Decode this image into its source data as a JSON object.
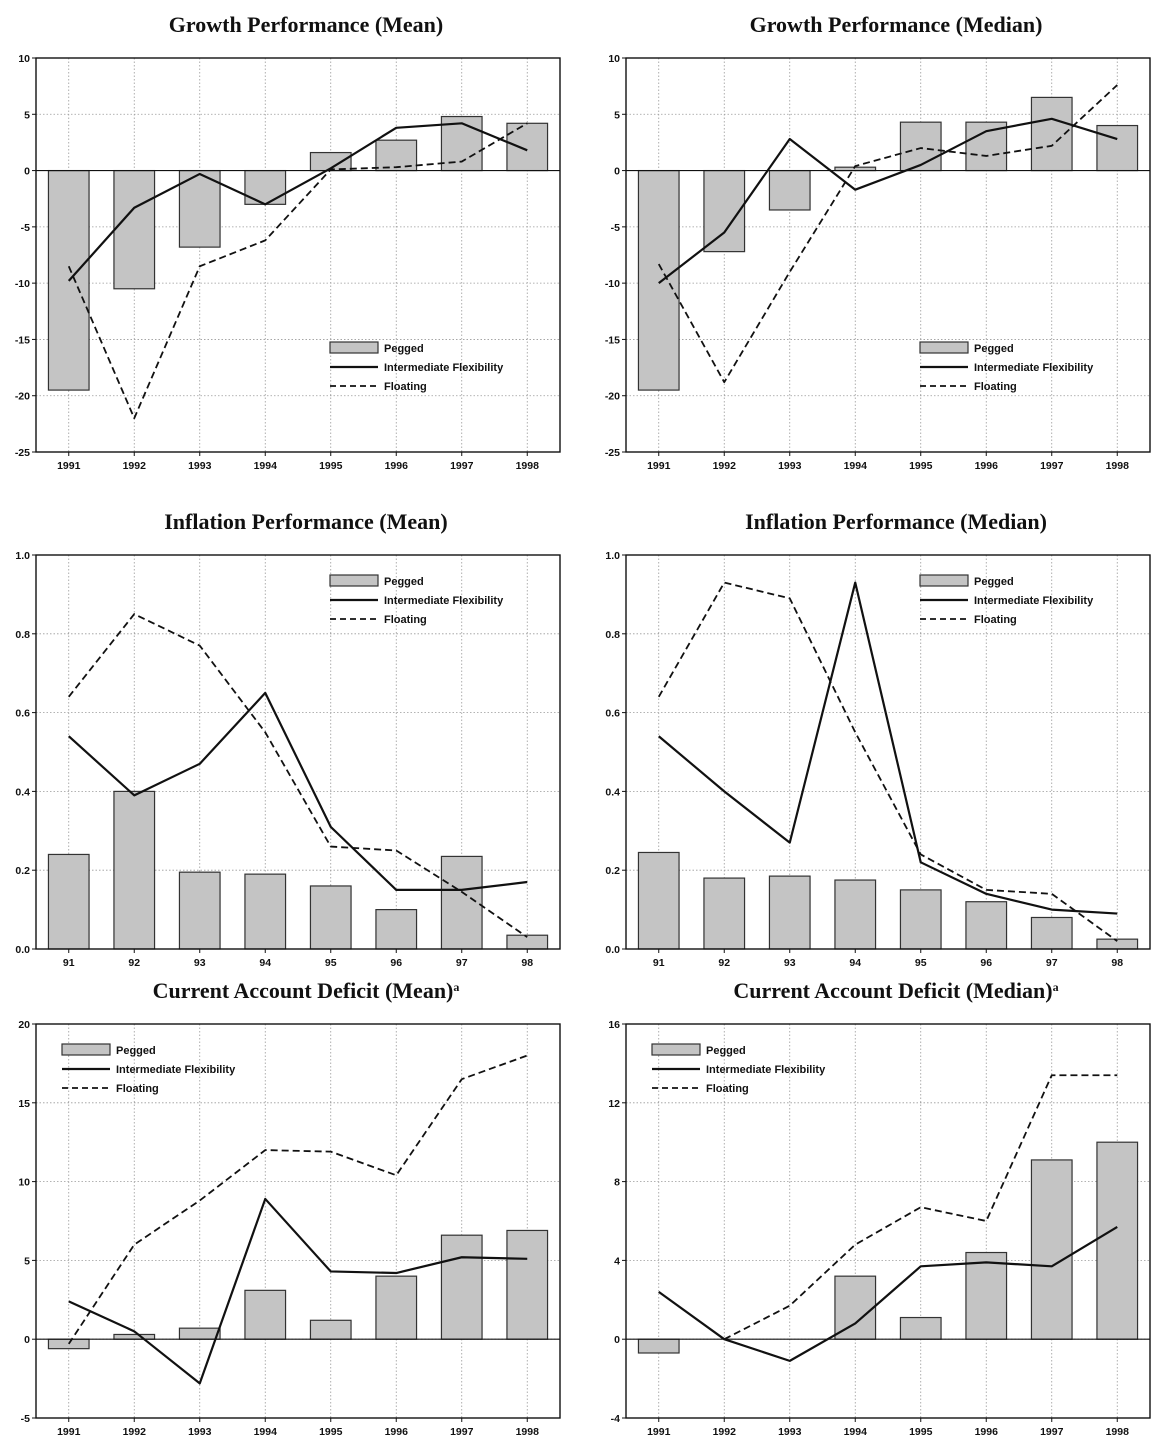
{
  "colors": {
    "bar_fill": "#c4c4c4",
    "bar_stroke": "#333333",
    "line": "#111111",
    "grid": "#9a9a9a"
  },
  "legend_labels": {
    "pegged": "Pegged",
    "intermediate": "Intermediate Flexibility",
    "floating": "Floating"
  },
  "chart_data": [
    {
      "type": "bar",
      "title": "Growth Performance (Mean)",
      "title_superscript": "",
      "categories": [
        "1991",
        "1992",
        "1993",
        "1994",
        "1995",
        "1996",
        "1997",
        "1998"
      ],
      "ylim": [
        -25,
        10
      ],
      "yticks": [
        10,
        5,
        0,
        -5,
        -10,
        -15,
        -20,
        -25
      ],
      "ytick_labels": [
        "10",
        "5",
        "0",
        "-5",
        "-10",
        "-15",
        "-20",
        "-25"
      ],
      "grid": true,
      "legend_position": "bottom-right",
      "series": [
        {
          "name": "Pegged",
          "kind": "bar",
          "values": [
            -19.5,
            -10.5,
            -6.8,
            -3.0,
            1.6,
            2.7,
            4.8,
            4.2
          ]
        },
        {
          "name": "Intermediate Flexibility",
          "kind": "line-solid",
          "values": [
            -9.8,
            -3.3,
            -0.3,
            -3.0,
            0.2,
            3.8,
            4.2,
            1.8
          ]
        },
        {
          "name": "Floating",
          "kind": "line-dashed",
          "values": [
            -8.5,
            -22.0,
            -8.5,
            -6.2,
            0.1,
            0.3,
            0.8,
            4.2
          ]
        }
      ]
    },
    {
      "type": "bar",
      "title": "Growth Performance (Median)",
      "title_superscript": "",
      "categories": [
        "1991",
        "1992",
        "1993",
        "1994",
        "1995",
        "1996",
        "1997",
        "1998"
      ],
      "ylim": [
        -25,
        10
      ],
      "yticks": [
        10,
        5,
        0,
        -5,
        -10,
        -15,
        -20,
        -25
      ],
      "ytick_labels": [
        "10",
        "5",
        "0",
        "-5",
        "-10",
        "-15",
        "-20",
        "-25"
      ],
      "grid": true,
      "legend_position": "bottom-right",
      "series": [
        {
          "name": "Pegged",
          "kind": "bar",
          "values": [
            -19.5,
            -7.2,
            -3.5,
            0.3,
            4.3,
            4.3,
            6.5,
            4.0
          ]
        },
        {
          "name": "Intermediate Flexibility",
          "kind": "line-solid",
          "values": [
            -10.0,
            -5.5,
            2.8,
            -1.7,
            0.5,
            3.5,
            4.6,
            2.8
          ]
        },
        {
          "name": "Floating",
          "kind": "line-dashed",
          "values": [
            -8.3,
            -18.8,
            -9.0,
            0.4,
            2.0,
            1.3,
            2.2,
            7.6
          ]
        }
      ]
    },
    {
      "type": "bar",
      "title": "Inflation Performance (Mean)",
      "title_superscript": "",
      "categories": [
        "91",
        "92",
        "93",
        "94",
        "95",
        "96",
        "97",
        "98"
      ],
      "ylim": [
        0,
        1.0
      ],
      "yticks": [
        1.0,
        0.8,
        0.6,
        0.4,
        0.2,
        0.0
      ],
      "ytick_labels": [
        "1.0",
        "0.8",
        "0.6",
        "0.4",
        "0.2",
        "0.0"
      ],
      "grid": true,
      "legend_position": "top-right",
      "series": [
        {
          "name": "Pegged",
          "kind": "bar",
          "values": [
            0.24,
            0.4,
            0.195,
            0.19,
            0.16,
            0.1,
            0.235,
            0.035
          ]
        },
        {
          "name": "Intermediate Flexibility",
          "kind": "line-solid",
          "values": [
            0.54,
            0.39,
            0.47,
            0.65,
            0.31,
            0.15,
            0.15,
            0.17
          ]
        },
        {
          "name": "Floating",
          "kind": "line-dashed",
          "values": [
            0.64,
            0.85,
            0.77,
            0.55,
            0.26,
            0.25,
            0.145,
            0.03
          ]
        }
      ]
    },
    {
      "type": "bar",
      "title": "Inflation Performance (Median)",
      "title_superscript": "",
      "categories": [
        "91",
        "92",
        "93",
        "94",
        "95",
        "96",
        "97",
        "98"
      ],
      "ylim": [
        0,
        1.0
      ],
      "yticks": [
        1.0,
        0.8,
        0.6,
        0.4,
        0.2,
        0.0
      ],
      "ytick_labels": [
        "1.0",
        "0.8",
        "0.6",
        "0.4",
        "0.2",
        "0.0"
      ],
      "grid": true,
      "legend_position": "top-right",
      "series": [
        {
          "name": "Pegged",
          "kind": "bar",
          "values": [
            0.245,
            0.18,
            0.185,
            0.175,
            0.15,
            0.12,
            0.08,
            0.025
          ]
        },
        {
          "name": "Intermediate Flexibility",
          "kind": "line-solid",
          "values": [
            0.54,
            0.4,
            0.27,
            0.93,
            0.22,
            0.14,
            0.1,
            0.09
          ]
        },
        {
          "name": "Floating",
          "kind": "line-dashed",
          "values": [
            0.64,
            0.93,
            0.89,
            0.55,
            0.24,
            0.15,
            0.14,
            0.02
          ]
        }
      ]
    },
    {
      "type": "bar",
      "title": "Current Account Deficit (Mean)",
      "title_superscript": "a",
      "categories": [
        "1991",
        "1992",
        "1993",
        "1994",
        "1995",
        "1996",
        "1997",
        "1998"
      ],
      "ylim": [
        -5,
        20
      ],
      "yticks": [
        20,
        15,
        10,
        5,
        0,
        -5
      ],
      "ytick_labels": [
        "20",
        "15",
        "10",
        "5",
        "0",
        "-5"
      ],
      "grid": true,
      "legend_position": "top-left",
      "series": [
        {
          "name": "Pegged",
          "kind": "bar",
          "values": [
            -0.6,
            0.3,
            0.7,
            3.1,
            1.2,
            4.0,
            6.6,
            6.9
          ]
        },
        {
          "name": "Intermediate Flexibility",
          "kind": "line-solid",
          "values": [
            2.4,
            0.5,
            -2.8,
            8.9,
            4.3,
            4.2,
            5.2,
            5.1
          ]
        },
        {
          "name": "Floating",
          "kind": "line-dashed",
          "values": [
            -0.3,
            6.0,
            8.8,
            12.0,
            11.9,
            10.4,
            16.5,
            18.0
          ]
        }
      ]
    },
    {
      "type": "bar",
      "title": "Current Account Deficit (Median)",
      "title_superscript": "a",
      "categories": [
        "1991",
        "1992",
        "1993",
        "1994",
        "1995",
        "1996",
        "1997",
        "1998"
      ],
      "ylim": [
        -4,
        16
      ],
      "yticks": [
        16,
        12,
        8,
        4,
        0,
        -4
      ],
      "ytick_labels": [
        "16",
        "12",
        "8",
        "4",
        "0",
        "-4"
      ],
      "grid": true,
      "legend_position": "top-left",
      "series": [
        {
          "name": "Pegged",
          "kind": "bar",
          "values": [
            -0.7,
            0.0,
            0.0,
            3.2,
            1.1,
            4.4,
            9.1,
            10.0
          ]
        },
        {
          "name": "Intermediate Flexibility",
          "kind": "line-solid",
          "values": [
            2.4,
            0.0,
            -1.1,
            0.8,
            3.7,
            3.9,
            3.7,
            5.7
          ]
        },
        {
          "name": "Floating",
          "kind": "line-dashed",
          "values": [
            null,
            0.0,
            1.7,
            4.8,
            6.7,
            6.0,
            13.4,
            13.4
          ]
        }
      ]
    }
  ]
}
